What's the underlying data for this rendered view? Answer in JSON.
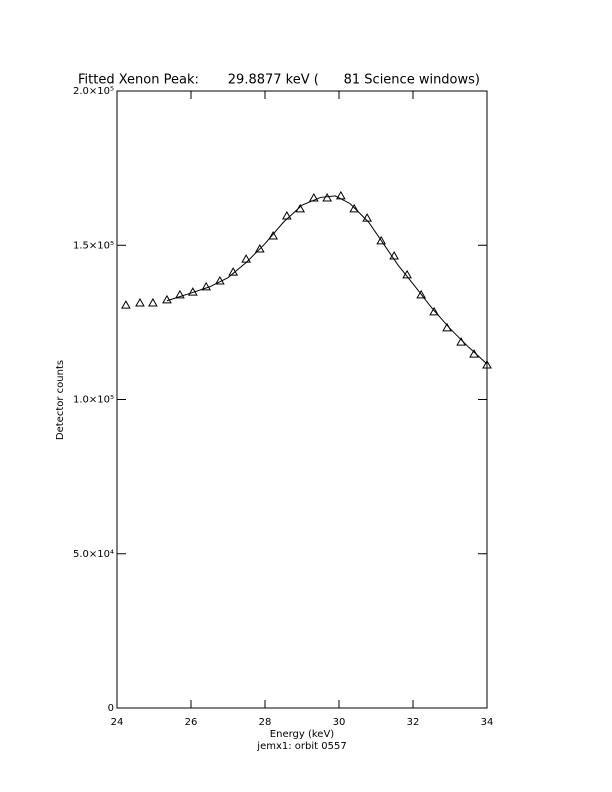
{
  "chart_data": {
    "type": "scatter",
    "title": "Fitted Xenon Peak:       29.8877 keV (      81 Science windows)",
    "x_label": "Energy (keV)",
    "subtitle": "jemx1: orbit 0557",
    "y_label": "Detector counts",
    "xlim": [
      24,
      34
    ],
    "xticks": [
      24,
      26,
      28,
      30,
      32,
      34
    ],
    "ylim": [
      0,
      200000
    ],
    "yticks": [
      0,
      {
        "value": 50000,
        "label": "5.0×10⁴"
      },
      {
        "value": 100000,
        "label": "1.0×10⁵"
      },
      {
        "value": 150000,
        "label": "1.5×10⁵"
      },
      {
        "value": 200000,
        "label": "2.0×10⁵"
      }
    ],
    "color": "#000000",
    "series": [
      {
        "marker": "triangle",
        "x": [
          24.24,
          24.62,
          24.97,
          25.35,
          25.7,
          26.05,
          26.41,
          26.78,
          27.14,
          27.49,
          27.86,
          28.22,
          28.59,
          28.95,
          29.32,
          29.68,
          30.05,
          30.41,
          30.76,
          31.14,
          31.49,
          31.84,
          32.22,
          32.57,
          32.92,
          33.3,
          33.65,
          34.0
        ],
        "values": [
          130600,
          131300,
          131300,
          132300,
          133900,
          134800,
          136500,
          138400,
          141300,
          145500,
          148800,
          153000,
          159500,
          161800,
          165300,
          165300,
          166000,
          161800,
          158800,
          151400,
          146500,
          140400,
          133900,
          128400,
          123200,
          118600,
          114700,
          111200
        ]
      },
      {
        "marker": "line",
        "x": [
          25.35,
          26.0,
          26.5,
          27.0,
          27.5,
          28.0,
          28.5,
          29.0,
          29.5,
          29.9,
          30.3,
          30.8,
          31.2,
          31.6,
          32.0,
          32.5,
          33.0,
          33.5,
          34.0
        ],
        "values": [
          132000,
          134500,
          136500,
          139500,
          144500,
          150500,
          157500,
          163000,
          165500,
          166000,
          163500,
          157500,
          150500,
          143500,
          137500,
          129800,
          123000,
          117000,
          111500
        ]
      }
    ]
  }
}
